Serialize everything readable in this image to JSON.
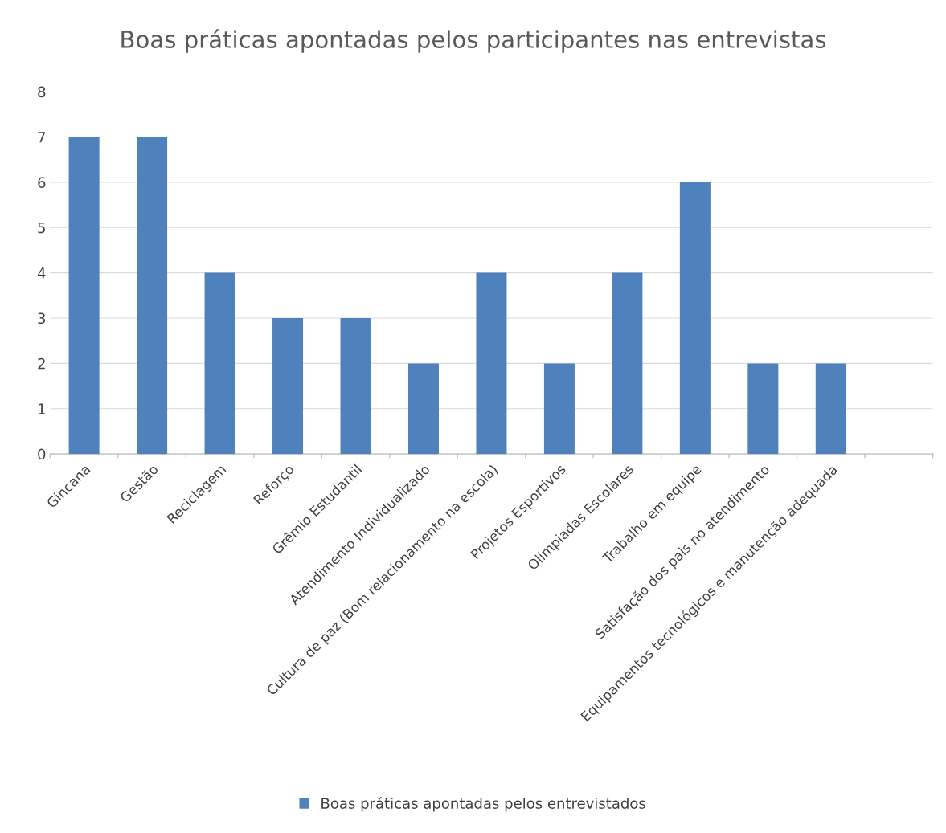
{
  "chart_data": {
    "type": "bar",
    "title": "Boas práticas apontadas pelos participantes nas entrevistas",
    "categories": [
      "Gincana",
      "Gestão",
      "Reciclagem",
      "Reforço",
      "Grêmio Estudantil",
      "Atendimento Individualizado",
      "Cultura de paz (Bom relacionamento na escola)",
      "Projetos Esportivos",
      "Olimpiadas Escolares",
      "Trabalho em equipe",
      "Satisfação dos pais no atendimento",
      "Equipamentos tecnológicos e manutenção adequada",
      null
    ],
    "series": [
      {
        "name": "Boas práticas apontadas pelos entrevistados",
        "color": "#4f81bd",
        "values": [
          7,
          7,
          4,
          3,
          3,
          2,
          4,
          2,
          4,
          6,
          2,
          2,
          null
        ]
      }
    ],
    "ylim": [
      0,
      8
    ],
    "yticks": [
      0,
      1,
      2,
      3,
      4,
      5,
      6,
      7,
      8
    ],
    "grid": "y",
    "legend": "bottom"
  }
}
